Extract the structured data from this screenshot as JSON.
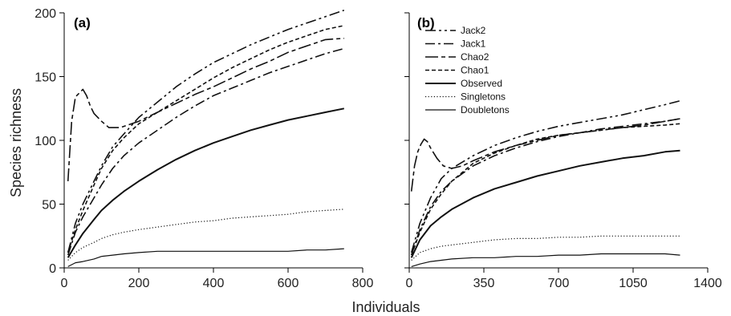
{
  "figure": {
    "ylabel": "Species richness",
    "xlabel": "Individuals"
  },
  "styles": {
    "Jack2": {
      "dash": "13 4 3 4 3 4",
      "width": 1.6
    },
    "Jack1": {
      "dash": "12 4 3 4",
      "width": 1.6
    },
    "Chao2": {
      "dash": "16 4 5 4",
      "width": 1.6
    },
    "Chao1": {
      "dash": "5 3",
      "width": 1.6
    },
    "Observed": {
      "dash": "",
      "width": 2.0
    },
    "Singletons": {
      "dash": "1.2 2.4",
      "width": 1.2
    },
    "Doubletons": {
      "dash": "",
      "width": 1.2
    },
    "color": "#111111"
  },
  "chart_data": [
    {
      "type": "line",
      "panel_label": "(a)",
      "xlim": [
        0,
        800
      ],
      "ylim": [
        0,
        200
      ],
      "xticks": [
        "0",
        "200",
        "400",
        "600",
        "800"
      ],
      "xtick_values": [
        0,
        200,
        400,
        600,
        800
      ],
      "yticks": [
        "0",
        "50",
        "100",
        "150",
        "200"
      ],
      "ytick_values": [
        0,
        50,
        100,
        150,
        200
      ],
      "legend": null,
      "series": [
        {
          "name": "Jack2",
          "x": [
            10,
            30,
            50,
            80,
            100,
            130,
            160,
            200,
            250,
            300,
            350,
            400,
            450,
            500,
            550,
            600,
            650,
            700,
            750
          ],
          "y": [
            12,
            35,
            50,
            68,
            80,
            95,
            105,
            118,
            130,
            142,
            152,
            161,
            168,
            175,
            181,
            187,
            192,
            197,
            202
          ]
        },
        {
          "name": "Jack1",
          "x": [
            10,
            30,
            50,
            80,
            100,
            130,
            160,
            200,
            250,
            300,
            350,
            400,
            450,
            500,
            550,
            600,
            650,
            700,
            750
          ],
          "y": [
            10,
            28,
            40,
            55,
            65,
            78,
            88,
            98,
            108,
            118,
            127,
            135,
            141,
            147,
            153,
            158,
            163,
            168,
            172
          ]
        },
        {
          "name": "Chao2",
          "x": [
            10,
            20,
            30,
            40,
            50,
            60,
            70,
            80,
            100,
            120,
            150,
            200,
            250,
            300,
            350,
            400,
            450,
            500,
            550,
            600,
            650,
            700,
            750
          ],
          "y": [
            68,
            115,
            134,
            137,
            140,
            135,
            127,
            121,
            115,
            110,
            110,
            115,
            122,
            129,
            136,
            142,
            149,
            156,
            162,
            169,
            174,
            179,
            180
          ]
        },
        {
          "name": "Chao1",
          "x": [
            10,
            30,
            50,
            80,
            100,
            130,
            160,
            200,
            250,
            300,
            350,
            400,
            450,
            500,
            550,
            600,
            650,
            700,
            750
          ],
          "y": [
            12,
            30,
            45,
            65,
            78,
            92,
            102,
            113,
            122,
            131,
            140,
            149,
            157,
            164,
            171,
            177,
            182,
            187,
            190
          ]
        },
        {
          "name": "Observed",
          "x": [
            10,
            30,
            50,
            80,
            100,
            130,
            160,
            200,
            250,
            300,
            350,
            400,
            450,
            500,
            550,
            600,
            650,
            700,
            750
          ],
          "y": [
            8,
            18,
            27,
            38,
            45,
            53,
            60,
            68,
            77,
            85,
            92,
            98,
            103,
            108,
            112,
            116,
            119,
            122,
            125
          ]
        },
        {
          "name": "Singletons",
          "x": [
            10,
            30,
            50,
            80,
            100,
            130,
            160,
            200,
            250,
            300,
            350,
            400,
            450,
            500,
            550,
            600,
            650,
            700,
            750
          ],
          "y": [
            6,
            12,
            16,
            20,
            23,
            26,
            28,
            30,
            32,
            34,
            36,
            37,
            39,
            40,
            41,
            42,
            44,
            45,
            46
          ]
        },
        {
          "name": "Doubletons",
          "x": [
            10,
            30,
            50,
            80,
            100,
            130,
            160,
            200,
            250,
            300,
            350,
            400,
            450,
            500,
            550,
            600,
            650,
            700,
            750
          ],
          "y": [
            1,
            4,
            5,
            7,
            9,
            10,
            11,
            12,
            13,
            13,
            13,
            13,
            13,
            13,
            13,
            13,
            14,
            14,
            15
          ]
        }
      ]
    },
    {
      "type": "line",
      "panel_label": "(b)",
      "xlim": [
        0,
        1400
      ],
      "ylim": [
        0,
        200
      ],
      "xticks": [
        "0",
        "350",
        "700",
        "1050",
        "1400"
      ],
      "xtick_values": [
        0,
        350,
        700,
        1050,
        1400
      ],
      "yticks": [],
      "ytick_values": [
        0,
        50,
        100,
        150,
        200
      ],
      "legend": {
        "position": "top-left",
        "entries": [
          "Jack2",
          "Jack1",
          "Chao2",
          "Chao1",
          "Observed",
          "Singletons",
          "Doubletons"
        ]
      },
      "series": [
        {
          "name": "Jack2",
          "x": [
            10,
            50,
            100,
            150,
            200,
            300,
            400,
            500,
            600,
            700,
            800,
            900,
            1000,
            1100,
            1200,
            1270
          ],
          "y": [
            12,
            35,
            55,
            70,
            78,
            88,
            96,
            102,
            107,
            111,
            114,
            117,
            120,
            124,
            128,
            131
          ]
        },
        {
          "name": "Jack1",
          "x": [
            10,
            50,
            100,
            150,
            200,
            300,
            400,
            500,
            600,
            700,
            800,
            900,
            1000,
            1100,
            1200,
            1270
          ],
          "y": [
            10,
            30,
            48,
            60,
            68,
            80,
            88,
            94,
            99,
            103,
            106,
            109,
            111,
            113,
            115,
            117
          ]
        },
        {
          "name": "Chao2",
          "x": [
            10,
            25,
            40,
            55,
            70,
            85,
            100,
            130,
            160,
            200,
            250,
            300,
            400,
            500,
            600,
            700,
            800,
            900,
            1000,
            1100,
            1200,
            1270
          ],
          "y": [
            60,
            80,
            91,
            97,
            101,
            99,
            94,
            86,
            80,
            78,
            80,
            84,
            91,
            96,
            100,
            104,
            106,
            108,
            110,
            112,
            115,
            117
          ]
        },
        {
          "name": "Chao1",
          "x": [
            10,
            50,
            100,
            150,
            200,
            300,
            400,
            500,
            600,
            700,
            800,
            900,
            1000,
            1100,
            1200,
            1270
          ],
          "y": [
            10,
            28,
            46,
            58,
            68,
            82,
            90,
            96,
            101,
            104,
            106,
            108,
            110,
            111,
            112,
            113
          ]
        },
        {
          "name": "Observed",
          "x": [
            10,
            50,
            100,
            150,
            200,
            300,
            400,
            500,
            600,
            700,
            800,
            900,
            1000,
            1100,
            1200,
            1270
          ],
          "y": [
            8,
            22,
            33,
            40,
            46,
            55,
            62,
            67,
            72,
            76,
            80,
            83,
            86,
            88,
            91,
            92
          ]
        },
        {
          "name": "Singletons",
          "x": [
            10,
            50,
            100,
            150,
            200,
            300,
            400,
            500,
            600,
            700,
            800,
            900,
            1000,
            1100,
            1200,
            1270
          ],
          "y": [
            6,
            12,
            15,
            17,
            18,
            20,
            22,
            23,
            23,
            24,
            24,
            25,
            25,
            25,
            25,
            25
          ]
        },
        {
          "name": "Doubletons",
          "x": [
            10,
            50,
            100,
            150,
            200,
            300,
            400,
            500,
            600,
            700,
            800,
            900,
            1000,
            1100,
            1200,
            1270
          ],
          "y": [
            1,
            3,
            5,
            6,
            7,
            8,
            8,
            9,
            9,
            10,
            10,
            11,
            11,
            11,
            11,
            10
          ]
        }
      ]
    }
  ]
}
